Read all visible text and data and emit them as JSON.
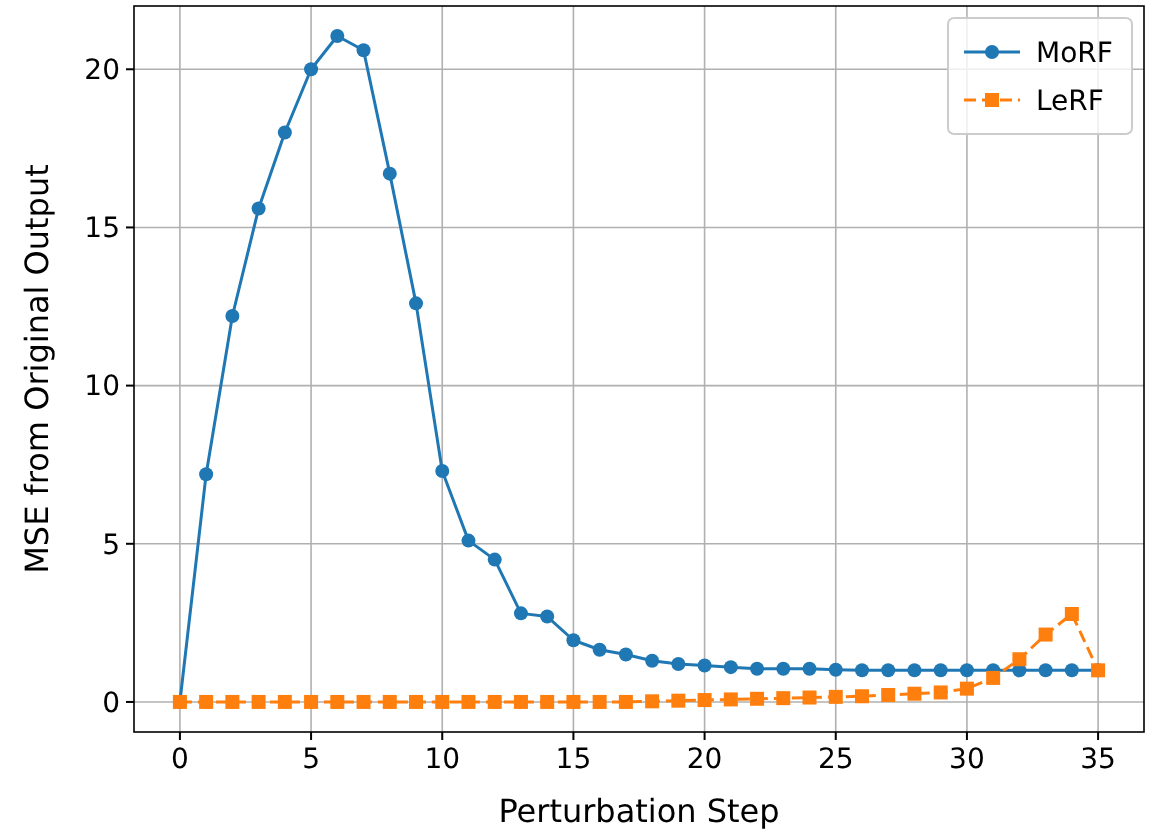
{
  "chart_data": {
    "type": "line",
    "xlabel": "Perturbation Step",
    "ylabel": "MSE from Original Output",
    "x": [
      0,
      1,
      2,
      3,
      4,
      5,
      6,
      7,
      8,
      9,
      10,
      11,
      12,
      13,
      14,
      15,
      16,
      17,
      18,
      19,
      20,
      21,
      22,
      23,
      24,
      25,
      26,
      27,
      28,
      29,
      30,
      31,
      32,
      33,
      34,
      35
    ],
    "series": [
      {
        "name": "MoRF",
        "color": "#1f77b4",
        "marker": "circle",
        "line_style": "solid",
        "values": [
          0,
          7.2,
          12.2,
          15.6,
          18.0,
          20.0,
          21.05,
          20.6,
          16.7,
          12.6,
          7.3,
          5.1,
          4.5,
          2.8,
          2.7,
          1.95,
          1.65,
          1.5,
          1.3,
          1.2,
          1.15,
          1.1,
          1.05,
          1.05,
          1.05,
          1.02,
          1.0,
          1.0,
          1.0,
          1.0,
          1.0,
          1.0,
          1.0,
          1.0,
          1.0,
          1.0
        ]
      },
      {
        "name": "LeRF",
        "color": "#ff7f0e",
        "marker": "square",
        "line_style": "dashed",
        "values": [
          0,
          0,
          0,
          0,
          0,
          0,
          0,
          0,
          0,
          0,
          0,
          0,
          0,
          0,
          0,
          0,
          0,
          0,
          0.02,
          0.04,
          0.06,
          0.08,
          0.1,
          0.12,
          0.14,
          0.16,
          0.18,
          0.22,
          0.26,
          0.3,
          0.42,
          0.76,
          1.35,
          2.13,
          2.78,
          1.0
        ]
      }
    ],
    "xlim": [
      -1.75,
      36.75
    ],
    "ylim": [
      -0.95,
      22.0
    ],
    "xticks": [
      0,
      5,
      10,
      15,
      20,
      25,
      30,
      35
    ],
    "yticks": [
      0,
      5,
      10,
      15,
      20
    ],
    "grid": true,
    "legend": "top right"
  }
}
